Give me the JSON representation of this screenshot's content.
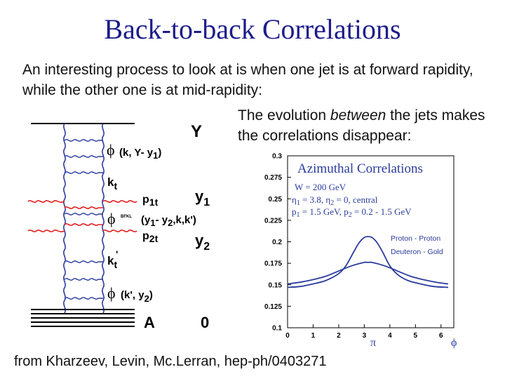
{
  "slide": {
    "title": "Back-to-back Correlations",
    "intro_text": "An interesting process to look at is when one jet is at forward rapidity, while the other one is at mid-rapidity:",
    "evolution_pre": "The evolution ",
    "evolution_em": "between",
    "evolution_post": " the jets makes the correlations disappear:",
    "citation": "from Kharzeev, Levin, Mc.Lerran, hep-ph/0403271"
  },
  "diagram": {
    "label_Y": "Y",
    "phi1": "ϕ",
    "phi1_args": "(k, Y- y",
    "phi1_sub": "1",
    "phi1_close": ")",
    "kt": "k",
    "kt_sub": "t",
    "p1t": "p",
    "p1t_sub": "1t",
    "y1": "y",
    "y1_sub": "1",
    "phi_bfkl": "ϕ",
    "bfkl_sup": "BFKL",
    "phi_bfkl_args": "(y",
    "phi_bfkl_args2": "- y",
    "phi_bfkl_args3": ",k,k')",
    "bfkl_sub1": "1",
    "bfkl_sub2": "2",
    "p2t": "p",
    "p2t_sub": "2t",
    "y2": "y",
    "y2_sub": "2",
    "kprime": "k",
    "kprime_sub": "t",
    "kprime_mark": "'",
    "phi2": "ϕ",
    "phi2_args": "(k',  y",
    "phi2_sub": "2",
    "phi2_close": ")",
    "label_A": "A",
    "label_0": "0"
  },
  "chart_data": {
    "type": "line",
    "title": "Azimuthal Correlations",
    "info": {
      "W": "W = 200 GeV",
      "eta": "η",
      "eta_rest": " = 3.8, η",
      "eta_rest2": " = 0, central",
      "eta_sub1": "1",
      "eta_sub2": "2",
      "p": "p",
      "p_rest": " = 1.5  GeV, p",
      "p_rest2": " = 0.2 - 1.5 GeV",
      "p_sub1": "1",
      "p_sub2": "2"
    },
    "xlabel": "π",
    "x_end_label": "ϕ",
    "xlim": [
      0,
      6.5
    ],
    "ylim": [
      0.1,
      0.3
    ],
    "x_ticks": [
      "0",
      "1",
      "2",
      "3",
      "4",
      "5",
      "6"
    ],
    "y_ticks": [
      "0.1",
      "0.125",
      "0.15",
      "0.175",
      "0.2",
      "0.225",
      "0.25",
      "0.275",
      "0.3"
    ],
    "grid": false,
    "legend_position": "right",
    "series": [
      {
        "name": "Proton - Proton",
        "color": "#2a3c9c",
        "x": [
          0,
          0.5,
          1.0,
          1.5,
          2.0,
          2.3,
          2.6,
          2.8,
          3.0,
          3.14,
          3.3,
          3.5,
          3.7,
          4.0,
          4.3,
          4.7,
          5.2,
          5.7,
          6.28
        ],
        "y": [
          0.147,
          0.148,
          0.151,
          0.155,
          0.163,
          0.173,
          0.189,
          0.199,
          0.205,
          0.206,
          0.205,
          0.199,
          0.189,
          0.172,
          0.162,
          0.155,
          0.151,
          0.148,
          0.147
        ]
      },
      {
        "name": "Deuteron - Gold",
        "color": "#2a3c9c",
        "x": [
          0,
          0.5,
          1.0,
          1.5,
          2.0,
          2.5,
          3.0,
          3.14,
          3.3,
          3.8,
          4.3,
          4.8,
          5.3,
          5.8,
          6.28
        ],
        "y": [
          0.151,
          0.153,
          0.156,
          0.16,
          0.166,
          0.172,
          0.176,
          0.176,
          0.176,
          0.172,
          0.166,
          0.16,
          0.156,
          0.153,
          0.151
        ]
      }
    ]
  },
  "colors": {
    "title": "#1c1c8c",
    "gluon_blue": "#2a3c9c",
    "jet_red": "#e02020",
    "chart_blue": "#2a3c9c"
  }
}
